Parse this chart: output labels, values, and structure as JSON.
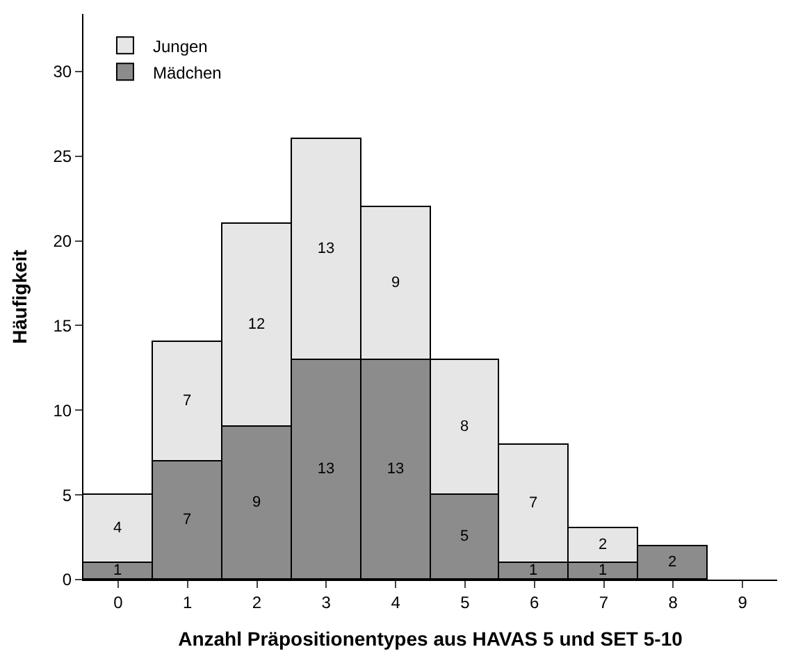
{
  "chart_data": {
    "type": "bar",
    "xlabel": "Anzahl Präpositionentypes aus HAVAS 5 und SET 5-10",
    "ylabel": "Häufigkeit",
    "categories": [
      "0",
      "1",
      "2",
      "3",
      "4",
      "5",
      "6",
      "7",
      "8",
      "9"
    ],
    "series": [
      {
        "name": "Mädchen",
        "color": "#8c8c8c",
        "values": [
          1,
          7,
          9,
          13,
          13,
          5,
          1,
          1,
          2,
          null
        ]
      },
      {
        "name": "Jungen",
        "color": "#e6e6e6",
        "values": [
          4,
          7,
          12,
          13,
          9,
          8,
          7,
          2,
          null,
          null
        ]
      }
    ],
    "stacked": true,
    "data_labels": true,
    "ylim": [
      0,
      33.4
    ],
    "yticks": [
      0,
      5,
      10,
      15,
      20,
      25,
      30
    ],
    "legend": "top left"
  }
}
